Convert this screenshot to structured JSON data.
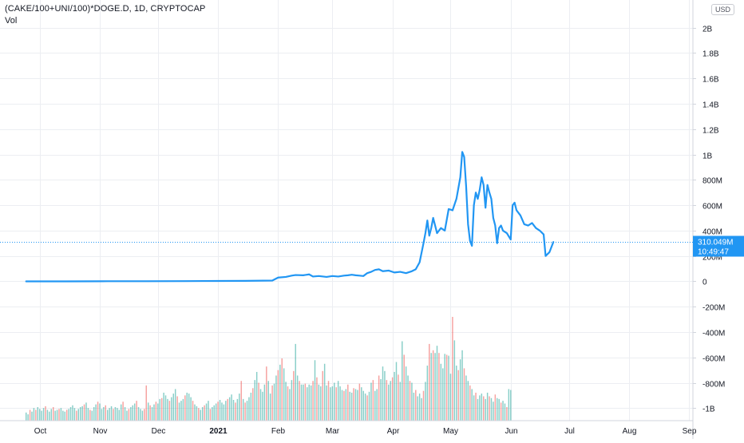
{
  "header": {
    "title": "(CAKE/100+UNI/100)*DOGE.D, 1D, CRYPTOCAP",
    "vol_label": "Vol",
    "currency": "USD"
  },
  "price_label": {
    "value": "310.049M",
    "countdown": "10:49:47"
  },
  "colors": {
    "line": "#2196f3",
    "grid": "#eceef2",
    "axis_text": "#131722",
    "vol_up": "#26a69a",
    "vol_down": "#ef5350",
    "price_dotted": "#2196f3",
    "label_bg": "#2196f3"
  },
  "chart_data": {
    "type": "line",
    "xlabel": "",
    "ylabel": "",
    "y_ticks": [
      {
        "value": 2000,
        "label": "2B"
      },
      {
        "value": 1800,
        "label": "1.8B"
      },
      {
        "value": 1600,
        "label": "1.6B"
      },
      {
        "value": 1400,
        "label": "1.4B"
      },
      {
        "value": 1200,
        "label": "1.2B"
      },
      {
        "value": 1000,
        "label": "1B"
      },
      {
        "value": 800,
        "label": "800M"
      },
      {
        "value": 600,
        "label": "600M"
      },
      {
        "value": 400,
        "label": "400M"
      },
      {
        "value": 200,
        "label": "200M"
      },
      {
        "value": 0,
        "label": "0"
      },
      {
        "value": -200,
        "label": "-200M"
      },
      {
        "value": -400,
        "label": "-400M"
      },
      {
        "value": -600,
        "label": "-600M"
      },
      {
        "value": -800,
        "label": "-800M"
      },
      {
        "value": -1000,
        "label": "-1B"
      }
    ],
    "x_ticks": [
      {
        "date": "2020-10-01",
        "label": "Oct"
      },
      {
        "date": "2020-11-01",
        "label": "Nov"
      },
      {
        "date": "2020-12-01",
        "label": "Dec"
      },
      {
        "date": "2021-01-01",
        "label": "2021"
      },
      {
        "date": "2021-02-01",
        "label": "Feb"
      },
      {
        "date": "2021-03-01",
        "label": "Mar"
      },
      {
        "date": "2021-04-01",
        "label": "Apr"
      },
      {
        "date": "2021-05-01",
        "label": "May"
      },
      {
        "date": "2021-06-01",
        "label": "Jun"
      },
      {
        "date": "2021-07-01",
        "label": "Jul"
      },
      {
        "date": "2021-08-01",
        "label": "Aug"
      },
      {
        "date": "2021-09-01",
        "label": "Sep"
      }
    ],
    "ylim": [
      -1060,
      2060
    ],
    "xlim": [
      "2020-09-27",
      "2021-09-03"
    ],
    "grid": true,
    "series": [
      {
        "points": [
          [
            "2020-09-24",
            0
          ],
          [
            "2020-10-15",
            0
          ],
          [
            "2020-11-05",
            1
          ],
          [
            "2020-11-25",
            1
          ],
          [
            "2020-12-15",
            2
          ],
          [
            "2021-01-01",
            3
          ],
          [
            "2021-01-15",
            4
          ],
          [
            "2021-01-29",
            6
          ],
          [
            "2021-02-01",
            30
          ],
          [
            "2021-02-05",
            35
          ],
          [
            "2021-02-08",
            45
          ],
          [
            "2021-02-10",
            50
          ],
          [
            "2021-02-14",
            48
          ],
          [
            "2021-02-17",
            55
          ],
          [
            "2021-02-19",
            38
          ],
          [
            "2021-02-22",
            42
          ],
          [
            "2021-02-26",
            35
          ],
          [
            "2021-03-01",
            42
          ],
          [
            "2021-03-04",
            38
          ],
          [
            "2021-03-07",
            45
          ],
          [
            "2021-03-09",
            48
          ],
          [
            "2021-03-11",
            52
          ],
          [
            "2021-03-13",
            48
          ],
          [
            "2021-03-15",
            45
          ],
          [
            "2021-03-17",
            42
          ],
          [
            "2021-03-19",
            65
          ],
          [
            "2021-03-21",
            75
          ],
          [
            "2021-03-23",
            90
          ],
          [
            "2021-03-25",
            95
          ],
          [
            "2021-03-27",
            80
          ],
          [
            "2021-03-30",
            85
          ],
          [
            "2021-04-02",
            70
          ],
          [
            "2021-04-05",
            75
          ],
          [
            "2021-04-08",
            65
          ],
          [
            "2021-04-11",
            80
          ],
          [
            "2021-04-13",
            95
          ],
          [
            "2021-04-15",
            150
          ],
          [
            "2021-04-17",
            300
          ],
          [
            "2021-04-18",
            380
          ],
          [
            "2021-04-19",
            480
          ],
          [
            "2021-04-20",
            360
          ],
          [
            "2021-04-21",
            420
          ],
          [
            "2021-04-22",
            500
          ],
          [
            "2021-04-23",
            440
          ],
          [
            "2021-04-24",
            380
          ],
          [
            "2021-04-26",
            420
          ],
          [
            "2021-04-28",
            400
          ],
          [
            "2021-04-30",
            570
          ],
          [
            "2021-05-02",
            560
          ],
          [
            "2021-05-04",
            650
          ],
          [
            "2021-05-06",
            820
          ],
          [
            "2021-05-07",
            1020
          ],
          [
            "2021-05-08",
            980
          ],
          [
            "2021-05-09",
            750
          ],
          [
            "2021-05-10",
            450
          ],
          [
            "2021-05-11",
            320
          ],
          [
            "2021-05-12",
            280
          ],
          [
            "2021-05-13",
            600
          ],
          [
            "2021-05-14",
            700
          ],
          [
            "2021-05-15",
            650
          ],
          [
            "2021-05-16",
            720
          ],
          [
            "2021-05-17",
            820
          ],
          [
            "2021-05-18",
            760
          ],
          [
            "2021-05-19",
            580
          ],
          [
            "2021-05-20",
            760
          ],
          [
            "2021-05-21",
            700
          ],
          [
            "2021-05-22",
            650
          ],
          [
            "2021-05-23",
            500
          ],
          [
            "2021-05-24",
            440
          ],
          [
            "2021-05-25",
            300
          ],
          [
            "2021-05-26",
            420
          ],
          [
            "2021-05-27",
            440
          ],
          [
            "2021-05-28",
            400
          ],
          [
            "2021-05-30",
            380
          ],
          [
            "2021-06-01",
            330
          ],
          [
            "2021-06-02",
            600
          ],
          [
            "2021-06-03",
            620
          ],
          [
            "2021-06-04",
            560
          ],
          [
            "2021-06-06",
            520
          ],
          [
            "2021-06-08",
            450
          ],
          [
            "2021-06-10",
            440
          ],
          [
            "2021-06-12",
            460
          ],
          [
            "2021-06-14",
            420
          ],
          [
            "2021-06-16",
            400
          ],
          [
            "2021-06-18",
            370
          ],
          [
            "2021-06-19",
            200
          ],
          [
            "2021-06-21",
            230
          ],
          [
            "2021-06-23",
            310
          ]
        ]
      }
    ],
    "volume": {
      "start_date": "2020-09-24",
      "values": [
        18,
        14,
        24,
        20,
        28,
        24,
        30,
        26,
        22,
        28,
        32,
        24,
        20,
        26,
        30,
        22,
        24,
        26,
        28,
        22,
        20,
        24,
        26,
        30,
        34,
        28,
        22,
        26,
        30,
        32,
        36,
        40,
        28,
        24,
        22,
        30,
        36,
        42,
        38,
        26,
        30,
        34,
        24,
        28,
        32,
        26,
        30,
        28,
        24,
        36,
        42,
        30,
        22,
        26,
        30,
        34,
        38,
        44,
        30,
        26,
        22,
        26,
        78,
        40,
        34,
        30,
        36,
        42,
        38,
        48,
        50,
        62,
        56,
        48,
        44,
        52,
        60,
        70,
        54,
        40,
        44,
        48,
        56,
        62,
        60,
        52,
        44,
        36,
        32,
        28,
        24,
        30,
        34,
        38,
        44,
        26,
        30,
        34,
        38,
        42,
        46,
        40,
        36,
        44,
        48,
        52,
        58,
        46,
        40,
        48,
        60,
        88,
        48,
        40,
        44,
        52,
        62,
        72,
        90,
        108,
        84,
        70,
        64,
        80,
        120,
        88,
        60,
        78,
        82,
        100,
        112,
        124,
        138,
        116,
        86,
        76,
        70,
        90,
        110,
        170,
        100,
        88,
        80,
        80,
        82,
        74,
        80,
        78,
        88,
        134,
        96,
        80,
        76,
        110,
        126,
        78,
        88,
        74,
        76,
        84,
        74,
        88,
        76,
        68,
        66,
        70,
        80,
        64,
        62,
        72,
        70,
        68,
        82,
        74,
        66,
        60,
        56,
        64,
        84,
        90,
        66,
        70,
        100,
        92,
        120,
        110,
        90,
        80,
        88,
        96,
        108,
        130,
        102,
        86,
        176,
        146,
        120,
        100,
        88,
        84,
        62,
        68,
        54,
        60,
        50,
        66,
        86,
        122,
        170,
        150,
        156,
        150,
        166,
        150,
        126,
        116,
        148,
        146,
        144,
        104,
        230,
        178,
        122,
        112,
        136,
        156,
        116,
        100,
        88,
        78,
        70,
        56,
        62,
        48,
        56,
        60,
        54,
        48,
        62,
        54,
        50,
        42,
        58,
        50,
        48,
        40,
        44,
        38,
        30,
        70,
        68
      ],
      "down_days": [
        2,
        5,
        10,
        14,
        17,
        21,
        26,
        30,
        33,
        37,
        41,
        45,
        50,
        53,
        57,
        61,
        62,
        64,
        67,
        70,
        74,
        78,
        82,
        86,
        89,
        92,
        95,
        99,
        104,
        108,
        111,
        113,
        117,
        120,
        124,
        127,
        130,
        132,
        135,
        138,
        141,
        144,
        148,
        150,
        153,
        156,
        160,
        164,
        166,
        169,
        172,
        176,
        179,
        182,
        186,
        189,
        192,
        195,
        198,
        201,
        205,
        208,
        210,
        213,
        217,
        220,
        223,
        226,
        229,
        232,
        236,
        239,
        242,
        245,
        248,
        251
      ],
      "max_value": 230
    }
  }
}
